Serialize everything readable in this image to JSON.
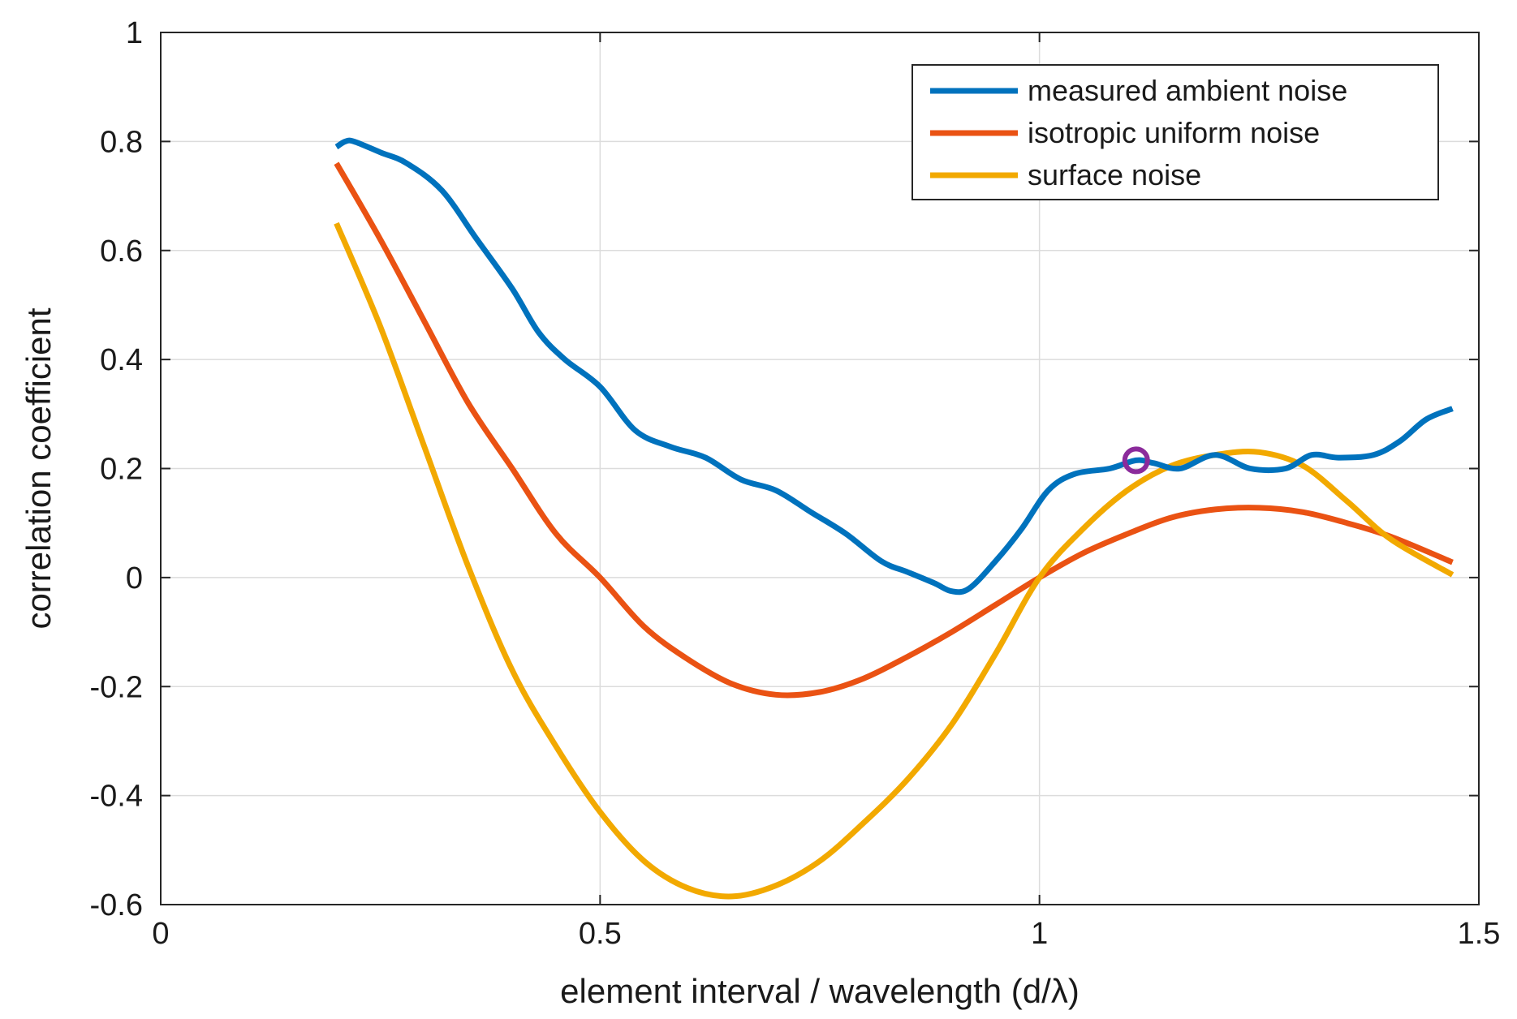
{
  "chart_data": {
    "type": "line",
    "title": "",
    "xlabel": "element interval / wavelength (d/λ)",
    "ylabel": "correlation coefficient",
    "xlim": [
      0,
      1.5
    ],
    "ylim": [
      -0.6,
      1
    ],
    "xticks": [
      0,
      0.5,
      1,
      1.5
    ],
    "xtick_labels": [
      "0",
      "0.5",
      "1",
      "1.5"
    ],
    "yticks": [
      -0.6,
      -0.4,
      -0.2,
      0,
      0.2,
      0.4,
      0.6,
      0.8,
      1
    ],
    "ytick_labels": [
      "-0.6",
      "-0.4",
      "-0.2",
      "0",
      "0.2",
      "0.4",
      "0.6",
      "0.8",
      "1"
    ],
    "grid": true,
    "legend_position": "top-right",
    "series": [
      {
        "name": "measured ambient noise",
        "color": "#0072BD",
        "x": [
          0.2,
          0.21,
          0.22,
          0.25,
          0.28,
          0.32,
          0.36,
          0.4,
          0.43,
          0.46,
          0.5,
          0.54,
          0.58,
          0.62,
          0.66,
          0.7,
          0.74,
          0.78,
          0.82,
          0.85,
          0.88,
          0.9,
          0.92,
          0.95,
          0.98,
          1.01,
          1.04,
          1.08,
          1.11,
          1.13,
          1.16,
          1.2,
          1.24,
          1.28,
          1.31,
          1.34,
          1.38,
          1.41,
          1.44,
          1.47
        ],
        "y": [
          0.79,
          0.8,
          0.8,
          0.78,
          0.76,
          0.71,
          0.62,
          0.53,
          0.45,
          0.4,
          0.35,
          0.27,
          0.24,
          0.22,
          0.18,
          0.16,
          0.12,
          0.08,
          0.03,
          0.01,
          -0.01,
          -0.025,
          -0.02,
          0.03,
          0.09,
          0.16,
          0.19,
          0.2,
          0.215,
          0.21,
          0.2,
          0.225,
          0.2,
          0.2,
          0.225,
          0.22,
          0.225,
          0.25,
          0.29,
          0.31
        ]
      },
      {
        "name": "isotropic uniform noise",
        "color": "#EA5213",
        "x": [
          0.2,
          0.25,
          0.3,
          0.35,
          0.4,
          0.45,
          0.5,
          0.55,
          0.6,
          0.65,
          0.7,
          0.75,
          0.8,
          0.85,
          0.9,
          0.95,
          1.0,
          1.05,
          1.1,
          1.15,
          1.2,
          1.25,
          1.3,
          1.35,
          1.4,
          1.47
        ],
        "y": [
          0.76,
          0.62,
          0.47,
          0.32,
          0.2,
          0.08,
          0.0,
          -0.09,
          -0.15,
          -0.195,
          -0.215,
          -0.21,
          -0.185,
          -0.145,
          -0.1,
          -0.05,
          0.0,
          0.045,
          0.08,
          0.11,
          0.125,
          0.128,
          0.12,
          0.1,
          0.075,
          0.028
        ]
      },
      {
        "name": "surface noise",
        "color": "#F2A900",
        "x": [
          0.2,
          0.25,
          0.3,
          0.35,
          0.4,
          0.45,
          0.5,
          0.55,
          0.6,
          0.65,
          0.7,
          0.75,
          0.8,
          0.85,
          0.9,
          0.95,
          1.0,
          1.05,
          1.1,
          1.15,
          1.2,
          1.25,
          1.3,
          1.35,
          1.4,
          1.47
        ],
        "y": [
          0.65,
          0.46,
          0.24,
          0.02,
          -0.17,
          -0.31,
          -0.43,
          -0.52,
          -0.57,
          -0.585,
          -0.565,
          -0.52,
          -0.45,
          -0.37,
          -0.27,
          -0.14,
          0.0,
          0.09,
          0.16,
          0.205,
          0.225,
          0.23,
          0.205,
          0.14,
          0.07,
          0.005
        ]
      }
    ],
    "annotations": [
      {
        "type": "marker",
        "shape": "circle",
        "x": 1.11,
        "y": 0.215,
        "color": "#8B2B9B"
      }
    ]
  }
}
